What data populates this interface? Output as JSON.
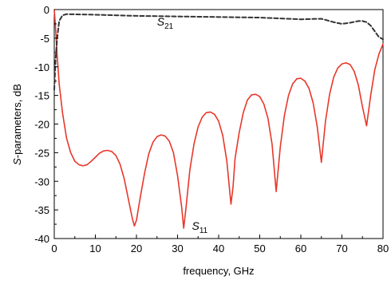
{
  "chart_data": {
    "type": "line",
    "title": "",
    "xlabel": "frequency, GHz",
    "ylabel_italic": "S",
    "ylabel_rest": "-parameters, dB",
    "xlim": [
      0,
      80
    ],
    "ylim": [
      -40,
      0
    ],
    "xticks": [
      0,
      10,
      20,
      30,
      40,
      50,
      60,
      70,
      80
    ],
    "yticks": [
      0,
      -5,
      -10,
      -15,
      -20,
      -25,
      -30,
      -35,
      -40
    ],
    "grid": false,
    "legend": "none",
    "series": [
      {
        "id": "s11",
        "color": "#e8372a",
        "style": "solid",
        "points": [
          [
            0,
            0
          ],
          [
            0.3,
            -3
          ],
          [
            0.7,
            -8
          ],
          [
            1.2,
            -13
          ],
          [
            2,
            -18
          ],
          [
            3,
            -22.5
          ],
          [
            4,
            -25
          ],
          [
            5,
            -26.5
          ],
          [
            6,
            -27.1
          ],
          [
            7,
            -27.3
          ],
          [
            8,
            -27.1
          ],
          [
            9,
            -26.5
          ],
          [
            10,
            -25.8
          ],
          [
            11,
            -25.1
          ],
          [
            12,
            -24.7
          ],
          [
            13,
            -24.6
          ],
          [
            14,
            -24.8
          ],
          [
            15,
            -25.5
          ],
          [
            16,
            -27
          ],
          [
            17,
            -29.5
          ],
          [
            18,
            -33
          ],
          [
            19,
            -36.5
          ],
          [
            19.5,
            -37.8
          ],
          [
            20,
            -36.8
          ],
          [
            21,
            -32.5
          ],
          [
            22,
            -28.5
          ],
          [
            23,
            -25.2
          ],
          [
            24,
            -23.2
          ],
          [
            25,
            -22.2
          ],
          [
            26,
            -21.9
          ],
          [
            27,
            -22.1
          ],
          [
            28,
            -23
          ],
          [
            29,
            -25
          ],
          [
            30,
            -29
          ],
          [
            31,
            -34.5
          ],
          [
            31.5,
            -38.2
          ],
          [
            32,
            -35
          ],
          [
            33,
            -28
          ],
          [
            34,
            -23.5
          ],
          [
            35,
            -20.5
          ],
          [
            36,
            -18.8
          ],
          [
            37,
            -18
          ],
          [
            38,
            -17.9
          ],
          [
            39,
            -18.3
          ],
          [
            40,
            -19.5
          ],
          [
            41,
            -22
          ],
          [
            42,
            -26.5
          ],
          [
            43,
            -34
          ],
          [
            43.5,
            -31
          ],
          [
            44,
            -26
          ],
          [
            45,
            -21.5
          ],
          [
            46,
            -18
          ],
          [
            47,
            -15.8
          ],
          [
            48,
            -14.9
          ],
          [
            49,
            -14.8
          ],
          [
            50,
            -15.2
          ],
          [
            51,
            -16.5
          ],
          [
            52,
            -19
          ],
          [
            53,
            -23.5
          ],
          [
            54,
            -31.8
          ],
          [
            55,
            -24
          ],
          [
            56,
            -18.5
          ],
          [
            57,
            -15
          ],
          [
            58,
            -13
          ],
          [
            59,
            -12.1
          ],
          [
            60,
            -12
          ],
          [
            61,
            -12.5
          ],
          [
            62,
            -13.8
          ],
          [
            63,
            -16.3
          ],
          [
            64,
            -20.5
          ],
          [
            65,
            -26.7
          ],
          [
            66,
            -19.5
          ],
          [
            67,
            -14.8
          ],
          [
            68,
            -11.8
          ],
          [
            69,
            -10.2
          ],
          [
            70,
            -9.5
          ],
          [
            71,
            -9.3
          ],
          [
            72,
            -9.6
          ],
          [
            73,
            -10.8
          ],
          [
            74,
            -13.2
          ],
          [
            75,
            -17
          ],
          [
            76,
            -20.3
          ],
          [
            77,
            -15
          ],
          [
            78,
            -10.5
          ],
          [
            79,
            -7.8
          ],
          [
            80,
            -6
          ]
        ]
      },
      {
        "id": "s21",
        "color": "#333333",
        "style": "dashed",
        "points": [
          [
            0,
            -14
          ],
          [
            0.3,
            -9
          ],
          [
            0.7,
            -5
          ],
          [
            1.2,
            -2
          ],
          [
            2,
            -1
          ],
          [
            3,
            -0.8
          ],
          [
            10,
            -0.9
          ],
          [
            20,
            -1.1
          ],
          [
            30,
            -1.2
          ],
          [
            40,
            -1.3
          ],
          [
            50,
            -1.4
          ],
          [
            60,
            -1.7
          ],
          [
            65,
            -1.6
          ],
          [
            68,
            -2.2
          ],
          [
            70,
            -2.5
          ],
          [
            72,
            -2.3
          ],
          [
            74,
            -2
          ],
          [
            75,
            -2
          ],
          [
            76,
            -2.2
          ],
          [
            77,
            -2.8
          ],
          [
            78,
            -3.8
          ],
          [
            79,
            -4.8
          ],
          [
            80,
            -5.2
          ]
        ]
      }
    ],
    "annotations": [
      {
        "id": "s21",
        "main": "S",
        "sub": "21",
        "x": 25,
        "y": -2.8
      },
      {
        "id": "s11",
        "main": "S",
        "sub": "11",
        "x": 33.5,
        "y": -38.5
      }
    ]
  }
}
